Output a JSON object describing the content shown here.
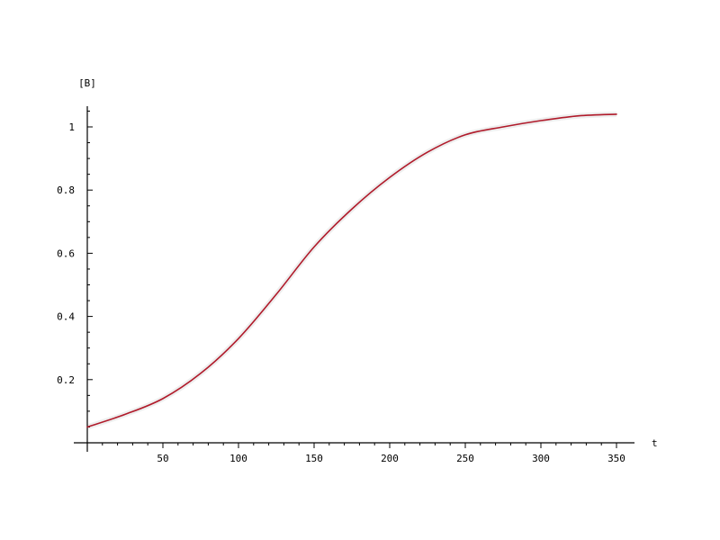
{
  "chart_data": {
    "type": "line",
    "title": "",
    "xlabel": "t",
    "ylabel": "[B]",
    "xlim": [
      0,
      360
    ],
    "ylim": [
      0,
      1.06
    ],
    "x_ticks": [
      50,
      100,
      150,
      200,
      250,
      300,
      350
    ],
    "x_tick_labels": [
      "50",
      "100",
      "150",
      "200",
      "250",
      "300",
      "350"
    ],
    "y_ticks": [
      0.2,
      0.4,
      0.6,
      0.8,
      1
    ],
    "y_tick_labels": [
      "0.2",
      "0.4",
      "0.6",
      "0.8",
      "1"
    ],
    "grid": false,
    "series": [
      {
        "color": "#b01a2a",
        "x": [
          0,
          25,
          50,
          75,
          100,
          125,
          150,
          175,
          200,
          225,
          250,
          275,
          300,
          325,
          350
        ],
        "y": [
          0.05,
          0.09,
          0.14,
          0.22,
          0.33,
          0.47,
          0.62,
          0.74,
          0.84,
          0.92,
          0.975,
          1.0,
          1.02,
          1.035,
          1.04
        ]
      }
    ]
  }
}
